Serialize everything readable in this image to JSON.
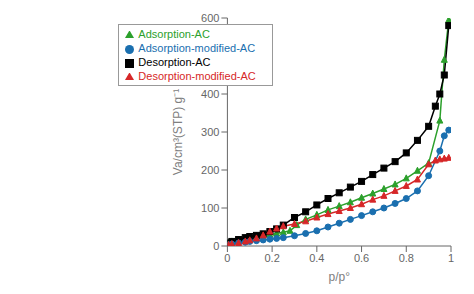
{
  "chart_data": {
    "type": "line",
    "title": "",
    "xlabel": "p/p°",
    "ylabel": "Va/cm³(STP) g⁻¹",
    "xlim": [
      0,
      1
    ],
    "ylim": [
      0,
      600
    ],
    "xticks": [
      0,
      0.2,
      0.4,
      0.6,
      0.8,
      1
    ],
    "yticks": [
      0,
      100,
      200,
      300,
      400,
      500,
      600
    ],
    "grid": false,
    "legend": "upper left",
    "series": [
      {
        "name": "Adsorption-AC",
        "color": "#2ca02c",
        "marker": "triangle",
        "x": [
          0.005,
          0.02,
          0.05,
          0.08,
          0.1,
          0.13,
          0.16,
          0.19,
          0.22,
          0.25,
          0.28,
          0.31,
          0.35,
          0.4,
          0.45,
          0.5,
          0.55,
          0.6,
          0.65,
          0.7,
          0.75,
          0.8,
          0.85,
          0.9,
          0.95,
          0.97,
          0.99
        ],
        "values": [
          8,
          12,
          17,
          21,
          23,
          26,
          28,
          30,
          33,
          36,
          40,
          55,
          70,
          82,
          95,
          105,
          115,
          127,
          138,
          150,
          162,
          178,
          198,
          218,
          330,
          490,
          595
        ]
      },
      {
        "name": "Desorption-AC",
        "color": "#000000",
        "marker": "square",
        "x": [
          0.005,
          0.02,
          0.05,
          0.08,
          0.1,
          0.13,
          0.16,
          0.19,
          0.22,
          0.25,
          0.3,
          0.35,
          0.4,
          0.45,
          0.5,
          0.55,
          0.6,
          0.65,
          0.7,
          0.75,
          0.8,
          0.85,
          0.9,
          0.93,
          0.95,
          0.97,
          0.99
        ],
        "values": [
          8,
          12,
          17,
          22,
          25,
          28,
          32,
          38,
          45,
          55,
          75,
          90,
          108,
          125,
          140,
          155,
          170,
          188,
          205,
          222,
          245,
          278,
          315,
          368,
          400,
          450,
          580
        ]
      },
      {
        "name": "Adsorption-modified-AC",
        "color": "#1a6faf",
        "marker": "circle",
        "x": [
          0.005,
          0.02,
          0.05,
          0.08,
          0.1,
          0.13,
          0.16,
          0.19,
          0.22,
          0.25,
          0.3,
          0.35,
          0.4,
          0.45,
          0.5,
          0.55,
          0.6,
          0.65,
          0.7,
          0.75,
          0.8,
          0.85,
          0.9,
          0.95,
          0.97,
          0.99
        ],
        "values": [
          3,
          5,
          8,
          10,
          12,
          14,
          16,
          18,
          20,
          22,
          27,
          33,
          40,
          50,
          60,
          70,
          80,
          90,
          100,
          112,
          125,
          145,
          185,
          250,
          290,
          305
        ]
      },
      {
        "name": "Desorption-modified-AC",
        "color": "#d62728",
        "marker": "triangle",
        "x": [
          0.005,
          0.02,
          0.05,
          0.08,
          0.1,
          0.13,
          0.16,
          0.19,
          0.22,
          0.25,
          0.3,
          0.35,
          0.4,
          0.45,
          0.5,
          0.55,
          0.6,
          0.65,
          0.7,
          0.75,
          0.8,
          0.85,
          0.9,
          0.93,
          0.95,
          0.97,
          0.99
        ],
        "values": [
          3,
          5,
          8,
          12,
          15,
          20,
          28,
          38,
          46,
          52,
          58,
          65,
          75,
          84,
          92,
          100,
          110,
          122,
          132,
          145,
          158,
          175,
          215,
          225,
          228,
          230,
          232
        ]
      }
    ]
  }
}
